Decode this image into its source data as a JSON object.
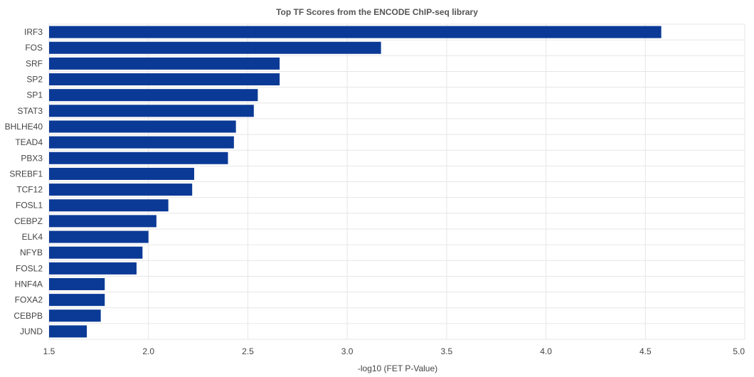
{
  "chart_data": {
    "type": "bar",
    "orientation": "horizontal",
    "title": "Top TF Scores from the ENCODE ChIP-seq library",
    "xlabel": "-log10 (FET P-Value)",
    "ylabel": "",
    "xlim": [
      1.5,
      5.0
    ],
    "xticks": [
      "1.5",
      "2.0",
      "2.5",
      "3.0",
      "3.5",
      "4.0",
      "4.5",
      "5.0"
    ],
    "grid": true,
    "bar_color": "#0b3a96",
    "categories": [
      "IRF3",
      "FOS",
      "SRF",
      "SP2",
      "SP1",
      "STAT3",
      "BHLHE40",
      "TEAD4",
      "PBX3",
      "SREBF1",
      "TCF12",
      "FOSL1",
      "CEBPZ",
      "ELK4",
      "NFYB",
      "FOSL2",
      "HNF4A",
      "FOXA2",
      "CEBPB",
      "JUND"
    ],
    "values": [
      4.58,
      3.17,
      2.66,
      2.66,
      2.55,
      2.53,
      2.44,
      2.43,
      2.4,
      2.23,
      2.22,
      2.1,
      2.04,
      2.0,
      1.97,
      1.94,
      1.78,
      1.78,
      1.76,
      1.69
    ]
  }
}
